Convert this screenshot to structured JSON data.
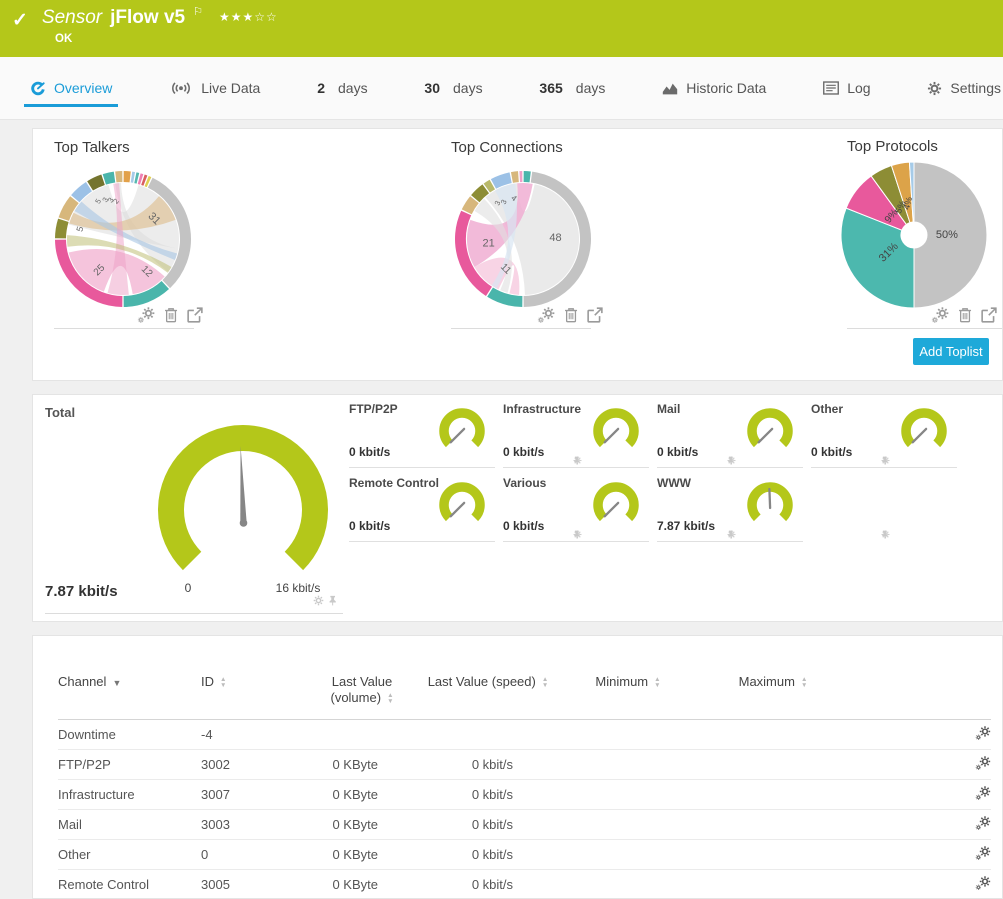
{
  "header": {
    "check_icon": "✓",
    "sensor_label": "Sensor",
    "sensor_name": "jFlow v5",
    "flag_icon": "⚐",
    "status": "OK",
    "stars_filled": "★★★",
    "stars_empty": "☆☆",
    "bg_color": "#b4c71a"
  },
  "tabs": {
    "overview": "Overview",
    "live_data": "Live Data",
    "days2_num": "2",
    "days2_label": "days",
    "days30_num": "30",
    "days30_label": "days",
    "days365_num": "365",
    "days365_label": "days",
    "historic": "Historic Data",
    "log": "Log",
    "settings": "Settings"
  },
  "toplists": {
    "add_button": "Add Toplist"
  },
  "chart_data": [
    {
      "id": "talkers",
      "type": "chord",
      "title": "Top Talkers",
      "segments": [
        {
          "value": 2,
          "color": "#e2a14a"
        },
        {
          "value": 1,
          "color": "#a6cbe8"
        },
        {
          "value": 1,
          "color": "#57b8b0"
        },
        {
          "value": 1,
          "color": "#ef7fb3"
        },
        {
          "value": 1,
          "color": "#d95f5f"
        },
        {
          "value": 1,
          "color": "#e0cf52"
        },
        {
          "value": 31,
          "color": "#c3c3c3"
        },
        {
          "value": 12,
          "color": "#4ab5ab"
        },
        {
          "value": 25,
          "color": "#e8599c"
        },
        {
          "value": 5,
          "color": "#8d8d35"
        },
        {
          "value": 6,
          "color": "#d7b77c"
        },
        {
          "value": 5,
          "color": "#9cc1e6"
        },
        {
          "value": 4,
          "color": "#74742e"
        },
        {
          "value": 3,
          "color": "#4ab5ab"
        },
        {
          "value": 2,
          "color": "#d7b77c"
        }
      ],
      "labels": [
        {
          "text": "31",
          "ang": 57,
          "r": 0.66,
          "rot": 45,
          "size": 11
        },
        {
          "text": "12",
          "ang": 144,
          "r": 0.72,
          "rot": 45,
          "size": 10
        },
        {
          "text": "25",
          "ang": 217,
          "r": 0.7,
          "rot": -45,
          "size": 10
        },
        {
          "text": "5",
          "ang": 283,
          "r": 0.78,
          "rot": -75,
          "size": 9
        },
        {
          "text": "5",
          "ang": 327,
          "r": 0.8,
          "rot": -60,
          "size": 7.5
        },
        {
          "text": "3",
          "ang": 336,
          "r": 0.76,
          "rot": -60,
          "size": 7.5
        },
        {
          "text": "3",
          "ang": 343,
          "r": 0.72,
          "rot": -55,
          "size": 7.5
        },
        {
          "text": "2",
          "ang": 350,
          "r": 0.68,
          "rot": -50,
          "size": 7.5
        }
      ],
      "ribbons": [
        {
          "a": [
            200,
            256
          ],
          "b": [
            132,
            170
          ],
          "color": "#f3b5d3",
          "opacity": 0.8
        },
        {
          "a": [
            16,
            100
          ],
          "b": [
            285,
            345
          ],
          "color": "#dadada",
          "opacity": 0.5
        },
        {
          "a": [
            100,
            126
          ],
          "b": [
            352,
            358
          ],
          "color": "#dadada",
          "opacity": 0.5
        },
        {
          "a": [
            286,
            298
          ],
          "b": [
            40,
            70
          ],
          "color": "#dfc092",
          "opacity": 0.65
        },
        {
          "a": [
            300,
            312
          ],
          "b": [
            105,
            112
          ],
          "color": "#a9c7e4",
          "opacity": 0.6
        },
        {
          "a": [
            174,
            196
          ],
          "b": [
            350,
            356
          ],
          "color": "#eda0c6",
          "opacity": 0.5
        },
        {
          "a": [
            262,
            274
          ],
          "b": [
            120,
            127
          ],
          "color": "#b9b96a",
          "opacity": 0.5
        }
      ]
    },
    {
      "id": "connections",
      "type": "chord",
      "title": "Top Connections",
      "segments": [
        {
          "value": 2,
          "color": "#4ab5ab"
        },
        {
          "value": 48,
          "color": "#c3c3c3"
        },
        {
          "value": 9,
          "color": "#4ab5ab"
        },
        {
          "value": 23,
          "color": "#e8599c"
        },
        {
          "value": 4,
          "color": "#d7b77c"
        },
        {
          "value": 4,
          "color": "#8d8d35"
        },
        {
          "value": 2,
          "color": "#b9b96a"
        },
        {
          "value": 5,
          "color": "#9cc1e6"
        },
        {
          "value": 2,
          "color": "#d7b77c"
        },
        {
          "value": 1,
          "color": "#f0a0c8"
        }
      ],
      "labels": [
        {
          "text": "48",
          "ang": 88,
          "r": 0.58,
          "rot": 0,
          "size": 11
        },
        {
          "text": "21",
          "ang": 262,
          "r": 0.62,
          "rot": 0,
          "size": 11
        },
        {
          "text": "11",
          "ang": 210,
          "r": 0.62,
          "rot": 45,
          "size": 10
        },
        {
          "text": "4",
          "ang": 347,
          "r": 0.74,
          "rot": 40,
          "size": 8
        },
        {
          "text": "3",
          "ang": 333,
          "r": 0.74,
          "rot": -65,
          "size": 7.5
        },
        {
          "text": "3",
          "ang": 325,
          "r": 0.78,
          "rot": -65,
          "size": 7.5
        }
      ],
      "ribbons": [
        {
          "a": [
            12,
            178
          ],
          "b": [
            318,
            354
          ],
          "color": "#e6e6e6",
          "opacity": 0.85
        },
        {
          "a": [
            240,
            290
          ],
          "b": [
            354,
            10
          ],
          "color": "#f0aed2",
          "opacity": 0.85
        },
        {
          "a": [
            206,
            240
          ],
          "b": [
            184,
            194
          ],
          "color": "#f6c9df",
          "opacity": 0.8
        },
        {
          "a": [
            300,
            316
          ],
          "b": [
            196,
            204
          ],
          "color": "#e0e0e0",
          "opacity": 0.6
        },
        {
          "a": [
            330,
            352
          ],
          "b": [
            208,
            214
          ],
          "color": "#d9e6f2",
          "opacity": 0.7
        }
      ]
    },
    {
      "id": "protocols",
      "type": "pie",
      "title": "Top Protocols",
      "slices": [
        {
          "pct": 50,
          "color": "#c3c3c3",
          "label": "50%"
        },
        {
          "pct": 31,
          "color": "#4cb8ae",
          "label": "31%"
        },
        {
          "pct": 9,
          "color": "#e8599c",
          "label": "9%"
        },
        {
          "pct": 5,
          "color": "#8d8d35",
          "label": "5%"
        },
        {
          "pct": 4,
          "color": "#dca349",
          "label": "4%"
        },
        {
          "pct": 1,
          "color": "#a6cbe8",
          "label": ""
        }
      ],
      "labels": [
        {
          "text": "50%",
          "ang": 90,
          "r": 0.45,
          "rot": 0,
          "size": 11
        },
        {
          "text": "31%",
          "ang": 235,
          "r": 0.42,
          "rot": -45,
          "size": 11
        },
        {
          "text": "9%",
          "ang": 310,
          "r": 0.4,
          "rot": -50,
          "size": 10
        },
        {
          "text": "5%",
          "ang": 335,
          "r": 0.42,
          "rot": -65,
          "size": 9
        },
        {
          "text": "4%",
          "ang": 350,
          "r": 0.44,
          "rot": -75,
          "size": 9
        }
      ]
    },
    {
      "id": "gauge-total",
      "type": "gauge",
      "title": "Total",
      "value": 7.87,
      "min": 0,
      "max": 16,
      "unit": "kbit/s"
    }
  ],
  "gauges": {
    "max": 16,
    "total": {
      "label": "Total",
      "value": 7.87,
      "value_text": "7.87 kbit/s",
      "min_label": "0",
      "max_label": "16 kbit/s"
    },
    "channels": [
      {
        "label": "FTP/P2P",
        "value": 0,
        "value_text": "0 kbit/s"
      },
      {
        "label": "Infrastructure",
        "value": 0,
        "value_text": "0 kbit/s"
      },
      {
        "label": "Mail",
        "value": 0,
        "value_text": "0 kbit/s"
      },
      {
        "label": "Other",
        "value": 0,
        "value_text": "0 kbit/s"
      },
      {
        "label": "Remote Control",
        "value": 0,
        "value_text": "0 kbit/s"
      },
      {
        "label": "Various",
        "value": 0,
        "value_text": "0 kbit/s"
      },
      {
        "label": "WWW",
        "value": 7.87,
        "value_text": "7.87 kbit/s"
      }
    ]
  },
  "table": {
    "columns": [
      "Channel",
      "ID",
      "Last Value (volume)",
      "Last Value (speed)",
      "Minimum",
      "Maximum"
    ],
    "sorted_column": "Channel",
    "rows": [
      {
        "channel": "Downtime",
        "id": "-4",
        "volume": "",
        "speed": "",
        "min": "",
        "max": ""
      },
      {
        "channel": "FTP/P2P",
        "id": "3002",
        "volume": "0 KByte",
        "speed": "0 kbit/s",
        "min": "",
        "max": ""
      },
      {
        "channel": "Infrastructure",
        "id": "3007",
        "volume": "0 KByte",
        "speed": "0 kbit/s",
        "min": "",
        "max": ""
      },
      {
        "channel": "Mail",
        "id": "3003",
        "volume": "0 KByte",
        "speed": "0 kbit/s",
        "min": "",
        "max": ""
      },
      {
        "channel": "Other",
        "id": "0",
        "volume": "0 KByte",
        "speed": "0 kbit/s",
        "min": "",
        "max": ""
      },
      {
        "channel": "Remote Control",
        "id": "3005",
        "volume": "0 KByte",
        "speed": "0 kbit/s",
        "min": "",
        "max": ""
      }
    ]
  },
  "colors": {
    "header_green": "#b4c71a",
    "accent_blue": "#1a9cd8",
    "button_blue": "#1ea9d9",
    "gauge_green": "#b4c71a",
    "needle_gray": "#868686"
  }
}
